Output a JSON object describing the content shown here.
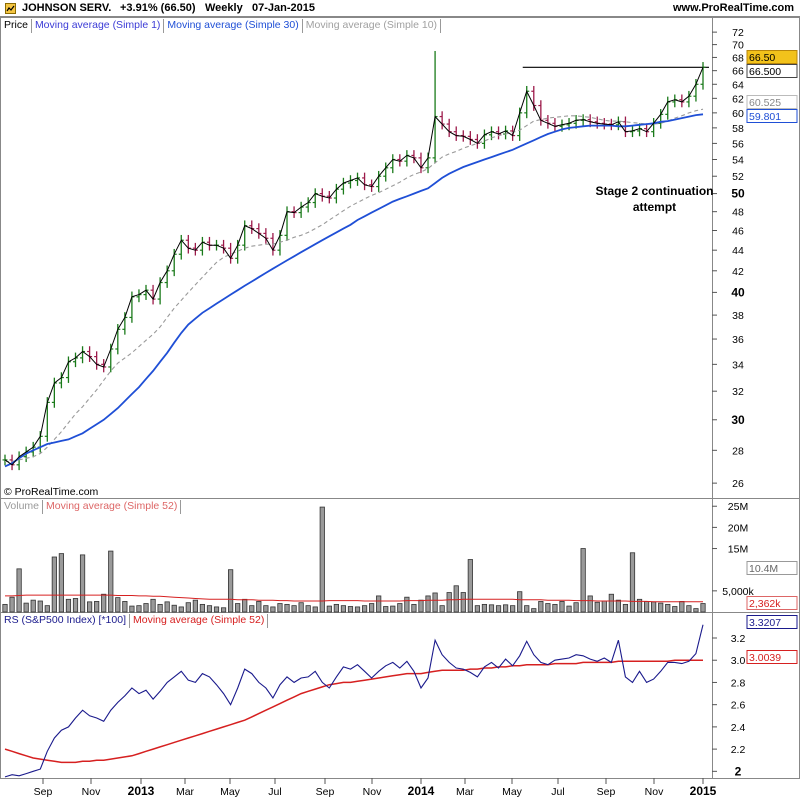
{
  "header": {
    "title": "JOHNSON SERV.",
    "change": "+3.91% (66.50)",
    "period": "Weekly",
    "date": "07-Jan-2015",
    "site": "www.ProRealTime.com"
  },
  "copyright": "© ProRealTime.com",
  "annotation": {
    "line1": "Stage 2 continuation",
    "line2": "attempt"
  },
  "legends": {
    "price": [
      "Price",
      "Moving average (Simple 1)",
      "Moving average (Simple 30)",
      "Moving average (Simple 10)"
    ],
    "volume": [
      "Volume",
      "Moving average (Simple 52)"
    ],
    "rs": [
      "RS (S&P500 Index) [*100]",
      "Moving average (Simple 52)"
    ]
  },
  "colors": {
    "up_bar": "#1a7a1a",
    "down_bar": "#9c1a4a",
    "ma1": "#000000",
    "ma30": "#1f4fd6",
    "ma10": "#9a9a9a",
    "volume_ma": "#d62020",
    "rs_line": "#1a1a8c",
    "rs_ma": "#d62020",
    "price_tag": "#f2c21b"
  },
  "chart_data": [
    {
      "type": "line",
      "title": "JOHNSON SERV. Weekly price with moving averages",
      "log_scale": true,
      "ylim": [
        25.6,
        73.5
      ],
      "y_ticks": [
        26,
        28,
        30,
        32,
        34,
        36,
        38,
        40,
        42,
        44,
        46,
        48,
        50,
        52,
        54,
        56,
        58,
        60,
        62,
        64,
        66,
        68,
        70,
        72
      ],
      "y_ticks_bold": [
        30,
        40,
        50
      ],
      "value_tags": [
        {
          "label": "66.50",
          "value": 66.5,
          "style": "highlight"
        },
        {
          "label": "66.500",
          "value": 66.5,
          "style": "line"
        },
        {
          "label": "60.525",
          "value": 60.525,
          "style": "ma10"
        },
        {
          "label": "59.801",
          "value": 59.801,
          "style": "ma30"
        }
      ],
      "x_labels": [
        "Sep",
        "Nov",
        "2013",
        "Mar",
        "May",
        "Jul",
        "Sep",
        "Nov",
        "2014",
        "Mar",
        "May",
        "Jul",
        "Sep",
        "Nov",
        "2015"
      ],
      "x_labels_bold": [
        "2013",
        "2014",
        "2015"
      ],
      "resistance_line": 66.5,
      "close": [
        27.4,
        27.1,
        27.6,
        27.9,
        28.2,
        28.9,
        31.2,
        32.6,
        33.0,
        34.2,
        34.5,
        35.0,
        34.6,
        34.0,
        33.8,
        35.2,
        36.8,
        37.8,
        39.6,
        39.8,
        40.2,
        39.4,
        40.9,
        42.0,
        43.6,
        45.0,
        44.2,
        44.0,
        44.8,
        44.5,
        44.5,
        44.2,
        43.2,
        44.5,
        46.5,
        46.2,
        45.7,
        45.2,
        44.0,
        45.5,
        48.0,
        47.9,
        48.5,
        49.0,
        50.0,
        49.7,
        49.5,
        50.5,
        51.2,
        51.5,
        51.8,
        51.0,
        50.8,
        52.0,
        53.0,
        54.0,
        53.8,
        54.5,
        54.2,
        53.0,
        54.2,
        59.5,
        58.5,
        57.5,
        57.0,
        56.9,
        56.5,
        56.0,
        57.1,
        57.5,
        57.2,
        57.6,
        57.0,
        60.0,
        63.0,
        61.0,
        59.0,
        58.6,
        58.2,
        58.4,
        58.6,
        59.0,
        59.1,
        58.8,
        58.6,
        58.5,
        58.4,
        58.8,
        57.5,
        57.6,
        57.9,
        57.5,
        58.6,
        59.8,
        61.5,
        61.8,
        61.5,
        62.3,
        64.0,
        66.5
      ],
      "series": [
        {
          "name": "Moving average (Simple 30)",
          "values": [
            27.0,
            27.2,
            27.5,
            27.8,
            28.0,
            28.2,
            28.4,
            28.5,
            28.6,
            28.7,
            28.9,
            29.1,
            29.4,
            29.7,
            30.0,
            30.4,
            30.8,
            31.3,
            31.8,
            32.3,
            32.9,
            33.5,
            34.2,
            34.9,
            35.7,
            36.5,
            37.2,
            37.7,
            38.2,
            38.6,
            39.0,
            39.4,
            39.8,
            40.2,
            40.6,
            41.0,
            41.4,
            41.8,
            42.2,
            42.6,
            43.0,
            43.4,
            43.8,
            44.2,
            44.6,
            45.0,
            45.4,
            45.8,
            46.2,
            46.6,
            47.1,
            47.5,
            47.9,
            48.3,
            48.7,
            49.1,
            49.4,
            49.7,
            50.0,
            50.3,
            50.6,
            51.2,
            51.8,
            52.3,
            52.7,
            53.1,
            53.4,
            53.7,
            54.0,
            54.3,
            54.6,
            54.9,
            55.2,
            55.6,
            56.0,
            56.4,
            56.8,
            57.2,
            57.5,
            57.8,
            58.0,
            58.1,
            58.2,
            58.3,
            58.3,
            58.3,
            58.3,
            58.2,
            58.2,
            58.3,
            58.4,
            58.5,
            58.6,
            58.8,
            58.9,
            59.1,
            59.3,
            59.5,
            59.7,
            59.8
          ]
        },
        {
          "name": "Moving average (Simple 10)",
          "values": [
            27.3,
            27.3,
            27.4,
            27.5,
            27.6,
            27.8,
            28.2,
            28.7,
            29.2,
            29.8,
            30.4,
            30.9,
            31.5,
            32.1,
            32.8,
            33.5,
            34.1,
            34.5,
            34.9,
            35.4,
            35.9,
            36.4,
            37.0,
            37.8,
            38.6,
            39.3,
            40.0,
            40.7,
            41.4,
            42.1,
            42.8,
            43.3,
            43.6,
            43.9,
            44.2,
            44.4,
            44.5,
            44.6,
            44.6,
            44.8,
            45.0,
            45.3,
            45.5,
            45.8,
            46.2,
            46.6,
            47.1,
            47.6,
            48.1,
            48.6,
            49.0,
            49.4,
            49.8,
            50.1,
            50.5,
            50.9,
            51.3,
            51.8,
            52.2,
            52.5,
            52.9,
            53.6,
            54.3,
            54.7,
            55.0,
            55.4,
            55.7,
            56.0,
            56.3,
            56.7,
            57.0,
            57.2,
            57.4,
            57.7,
            58.3,
            58.9,
            59.1,
            59.3,
            59.4,
            59.5,
            59.6,
            59.6,
            59.5,
            59.4,
            59.2,
            59.0,
            58.9,
            58.9,
            58.8,
            58.7,
            58.6,
            58.5,
            58.5,
            58.6,
            58.9,
            59.3,
            59.6,
            60.0,
            60.3,
            60.5
          ]
        }
      ]
    },
    {
      "type": "bar",
      "title": "Volume",
      "ylim": [
        0,
        26000000
      ],
      "y_ticks": [
        "25M",
        "20M",
        "15M",
        "5,000k"
      ],
      "y_tick_values": [
        25000000,
        20000000,
        15000000,
        5000000
      ],
      "value_tags": [
        {
          "label": "10.4M",
          "value": 10400000
        },
        {
          "label": "2,362k",
          "value": 2362000
        }
      ],
      "values": [
        1.8,
        3.5,
        10.2,
        2.1,
        2.8,
        2.6,
        1.5,
        13.0,
        13.8,
        3.0,
        3.2,
        13.5,
        2.4,
        2.5,
        4.2,
        14.4,
        3.4,
        2.5,
        1.4,
        1.5,
        2.0,
        3.0,
        1.8,
        2.4,
        1.6,
        1.2,
        2.2,
        2.8,
        1.8,
        1.5,
        1.2,
        1.0,
        10.0,
        2.0,
        3.0,
        1.5,
        2.5,
        1.5,
        1.2,
        2.0,
        1.8,
        1.5,
        2.2,
        1.5,
        1.2,
        24.8,
        1.4,
        1.8,
        1.5,
        1.3,
        1.2,
        1.5,
        2.0,
        3.8,
        1.3,
        1.4,
        2.0,
        3.5,
        1.8,
        2.8,
        3.8,
        4.5,
        1.5,
        4.6,
        6.2,
        4.6,
        12.4,
        1.5,
        1.8,
        1.7,
        1.5,
        1.7,
        1.5,
        4.8,
        1.5,
        0.8,
        2.5,
        2.0,
        1.8,
        2.5,
        1.4,
        2.2,
        15.0,
        3.8,
        2.3,
        2.6,
        4.2,
        2.8,
        1.8,
        14.0,
        3.0,
        2.5,
        2.4,
        2.1,
        1.8,
        1.3,
        2.5,
        1.5,
        0.8,
        2.0
      ],
      "series": [
        {
          "name": "Moving average (Simple 52)",
          "values": [
            3.8,
            3.8,
            3.9,
            4.0,
            4.0,
            4.0,
            4.0,
            4.0,
            4.0,
            4.0,
            4.0,
            4.0,
            4.0,
            4.0,
            4.0,
            4.0,
            3.9,
            3.9,
            3.9,
            3.8,
            3.8,
            3.7,
            3.7,
            3.6,
            3.5,
            3.4,
            3.3,
            3.2,
            3.1,
            3.0,
            3.0,
            3.0,
            3.0,
            2.9,
            2.9,
            2.9,
            2.8,
            2.8,
            2.8,
            2.7,
            2.7,
            2.6,
            2.6,
            2.6,
            2.6,
            2.6,
            2.7,
            2.7,
            2.7,
            2.7,
            2.7,
            2.6,
            2.6,
            2.6,
            2.6,
            2.6,
            2.6,
            2.7,
            2.7,
            2.7,
            2.8,
            2.8,
            2.8,
            2.9,
            2.9,
            3.0,
            3.0,
            3.0,
            3.0,
            3.0,
            3.0,
            3.0,
            3.0,
            2.9,
            2.9,
            2.9,
            2.9,
            2.8,
            2.8,
            2.8,
            2.8,
            2.7,
            2.7,
            2.7,
            2.6,
            2.6,
            2.6,
            2.6,
            2.6,
            2.5,
            2.5,
            2.5,
            2.4,
            2.4,
            2.4,
            2.4,
            2.4,
            2.4,
            2.4,
            2.4
          ]
        }
      ]
    },
    {
      "type": "line",
      "title": "RS (S&P500 Index) [*100]",
      "ylim": [
        1.94,
        3.38
      ],
      "y_ticks": [
        2,
        2.2,
        2.4,
        2.6,
        2.8,
        3.0,
        3.2
      ],
      "y_ticks_bold": [
        2
      ],
      "value_tags": [
        {
          "label": "3.3207",
          "value": 3.3207,
          "style": "rs"
        },
        {
          "label": "3.0039",
          "value": 3.0039,
          "style": "rs_ma"
        }
      ],
      "series": [
        {
          "name": "RS (S&P500 Index) [*100]",
          "values": [
            1.95,
            1.97,
            1.96,
            1.98,
            2.0,
            2.02,
            2.18,
            2.3,
            2.37,
            2.4,
            2.48,
            2.55,
            2.5,
            2.48,
            2.45,
            2.55,
            2.62,
            2.68,
            2.75,
            2.7,
            2.73,
            2.65,
            2.72,
            2.8,
            2.85,
            2.9,
            2.82,
            2.8,
            2.88,
            2.85,
            2.78,
            2.7,
            2.6,
            2.75,
            2.92,
            2.88,
            2.8,
            2.75,
            2.66,
            2.78,
            2.85,
            2.8,
            2.84,
            2.85,
            2.9,
            2.8,
            2.75,
            2.85,
            2.94,
            2.92,
            2.96,
            2.9,
            2.84,
            2.9,
            2.95,
            2.98,
            2.93,
            2.99,
            2.9,
            2.75,
            2.84,
            3.18,
            3.05,
            2.98,
            2.93,
            2.92,
            2.89,
            2.85,
            2.94,
            2.98,
            2.93,
            3.01,
            2.95,
            3.04,
            3.17,
            3.05,
            2.98,
            2.96,
            3.0,
            3.01,
            3.02,
            3.05,
            3.04,
            3.01,
            2.99,
            3.02,
            2.98,
            3.18,
            2.85,
            2.8,
            2.9,
            2.8,
            2.83,
            2.9,
            2.98,
            2.98,
            2.97,
            2.99,
            3.06,
            3.32
          ]
        },
        {
          "name": "Moving average (Simple 52)",
          "values": [
            2.2,
            2.18,
            2.16,
            2.14,
            2.12,
            2.11,
            2.1,
            2.09,
            2.08,
            2.08,
            2.08,
            2.09,
            2.09,
            2.1,
            2.1,
            2.11,
            2.12,
            2.13,
            2.14,
            2.16,
            2.18,
            2.2,
            2.22,
            2.24,
            2.26,
            2.28,
            2.3,
            2.32,
            2.34,
            2.36,
            2.38,
            2.4,
            2.42,
            2.44,
            2.46,
            2.49,
            2.52,
            2.55,
            2.58,
            2.61,
            2.64,
            2.67,
            2.7,
            2.72,
            2.74,
            2.76,
            2.78,
            2.79,
            2.8,
            2.8,
            2.81,
            2.82,
            2.83,
            2.84,
            2.85,
            2.86,
            2.87,
            2.88,
            2.88,
            2.88,
            2.89,
            2.9,
            2.91,
            2.91,
            2.91,
            2.91,
            2.92,
            2.92,
            2.93,
            2.93,
            2.94,
            2.94,
            2.95,
            2.95,
            2.96,
            2.96,
            2.96,
            2.96,
            2.97,
            2.97,
            2.97,
            2.97,
            2.98,
            2.98,
            2.98,
            2.98,
            2.98,
            2.99,
            2.99,
            2.99,
            2.99,
            2.99,
            2.99,
            2.99,
            2.99,
            3.0,
            3.0,
            3.0,
            3.0,
            3.0
          ]
        }
      ]
    }
  ]
}
